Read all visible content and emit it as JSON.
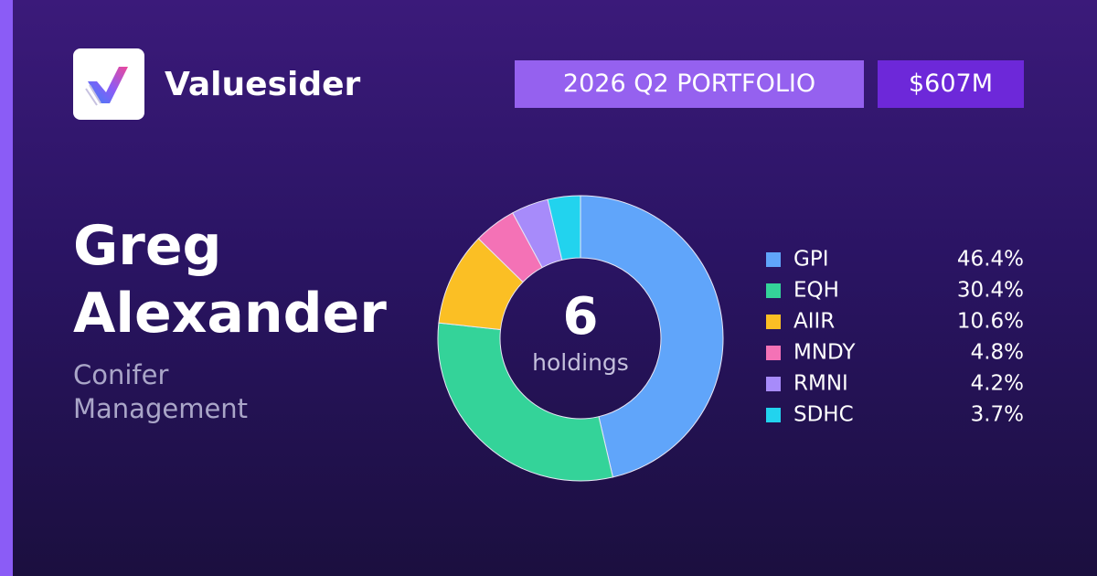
{
  "header": {
    "brand": "Valuesider",
    "period": "2026 Q2 PORTFOLIO",
    "aum": "$607M"
  },
  "manager": {
    "name": "Greg Alexander",
    "firm": "Conifer Management"
  },
  "chart_data": {
    "type": "donut",
    "categories": [
      "GPI",
      "EQH",
      "AIIR",
      "MNDY",
      "RMNI",
      "SDHC"
    ],
    "values": [
      46.4,
      30.4,
      10.6,
      4.8,
      4.2,
      3.7
    ],
    "value_labels": [
      "46.4%",
      "30.4%",
      "10.6%",
      "4.8%",
      "4.2%",
      "3.7%"
    ],
    "colors": [
      "#60a5fa",
      "#34d399",
      "#fbbf24",
      "#f472b6",
      "#a78bfa",
      "#22d3ee"
    ],
    "center_value": 6,
    "center_label": "holdings"
  }
}
